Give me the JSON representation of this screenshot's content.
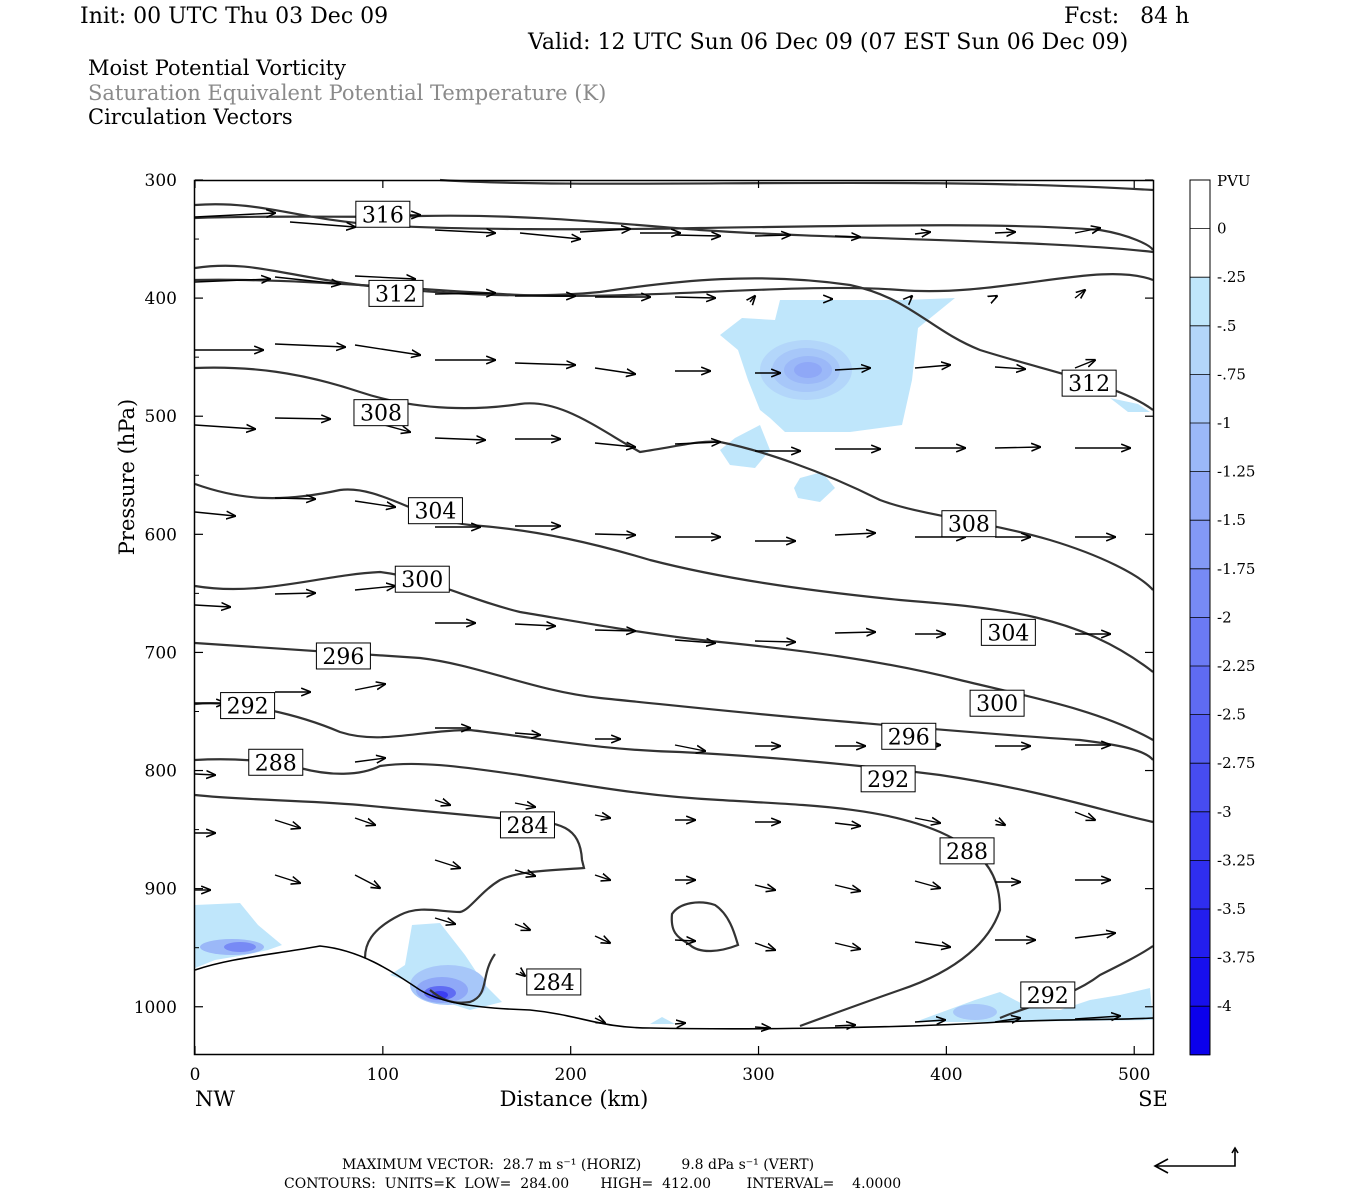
{
  "header": {
    "init": "Init: 00 UTC Thu 03 Dec 09",
    "fcst": "Fcst:   84 h",
    "valid": "Valid: 12 UTC Sun 06 Dec 09 (07 EST Sun 06 Dec 09)",
    "field1": "Moist Potential Vorticity",
    "field2": "Saturation Equivalent Potential Temperature (K)",
    "field3": "Circulation Vectors"
  },
  "footer": {
    "max_vector": "MAXIMUM VECTOR:  28.7 m s⁻¹ (HORIZ)         9.8 dPa s⁻¹ (VERT)",
    "contours": "CONTOURS:  UNITS=K  LOW=  284.00       HIGH=  412.00        INTERVAL=    4.0000"
  },
  "chart_data": {
    "type": "cross-section",
    "xlabel": "Distance (km)",
    "ylabel": "Pressure (hPa)",
    "x_start_label": "NW",
    "x_end_label": "SE",
    "xlim": [
      0,
      510
    ],
    "ylim": [
      300,
      1040
    ],
    "x_ticks": [
      0,
      100,
      200,
      300,
      400,
      500
    ],
    "y_ticks": [
      300,
      400,
      500,
      600,
      700,
      800,
      900,
      1000
    ],
    "colorbar": {
      "title": "PVU",
      "labels": [
        "0",
        "-.25",
        "-.5",
        "-.75",
        "-1",
        "-1.25",
        "-1.5",
        "-1.75",
        "-2",
        "-2.25",
        "-2.5",
        "-2.75",
        "-3",
        "-3.25",
        "-3.5",
        "-3.75",
        "-4"
      ],
      "colors": [
        "#ffffff",
        "#ffffff",
        "#bfe6fb",
        "#b3d6fa",
        "#a7c7f9",
        "#9bb8f8",
        "#8fa8f7",
        "#8399f6",
        "#778af5",
        "#6b7af4",
        "#5f6bf3",
        "#535cf2",
        "#474cf1",
        "#3b3df0",
        "#2f2eef",
        "#231eee",
        "#170fed",
        "#0b00ec"
      ]
    },
    "contour_labels": [
      {
        "text": "316",
        "x": 100,
        "p": 329
      },
      {
        "text": "312",
        "x": 107,
        "p": 396
      },
      {
        "text": "312",
        "x": 476,
        "p": 472
      },
      {
        "text": "308",
        "x": 99,
        "p": 497
      },
      {
        "text": "308",
        "x": 412,
        "p": 591
      },
      {
        "text": "304",
        "x": 128,
        "p": 580
      },
      {
        "text": "304",
        "x": 433,
        "p": 683
      },
      {
        "text": "300",
        "x": 121,
        "p": 638
      },
      {
        "text": "300",
        "x": 427,
        "p": 743
      },
      {
        "text": "296",
        "x": 79,
        "p": 703
      },
      {
        "text": "296",
        "x": 380,
        "p": 771
      },
      {
        "text": "292",
        "x": 28,
        "p": 745
      },
      {
        "text": "292",
        "x": 369,
        "p": 807
      },
      {
        "text": "292",
        "x": 454,
        "p": 990
      },
      {
        "text": "288",
        "x": 43,
        "p": 793
      },
      {
        "text": "288",
        "x": 411,
        "p": 868
      },
      {
        "text": "284",
        "x": 177,
        "p": 846
      },
      {
        "text": "284",
        "x": 191,
        "p": 979
      }
    ],
    "theta_e_contours_K": [
      284,
      288,
      292,
      296,
      300,
      304,
      308,
      312,
      316,
      320
    ],
    "mpv_max_region": {
      "x": 325,
      "p": 462
    }
  }
}
